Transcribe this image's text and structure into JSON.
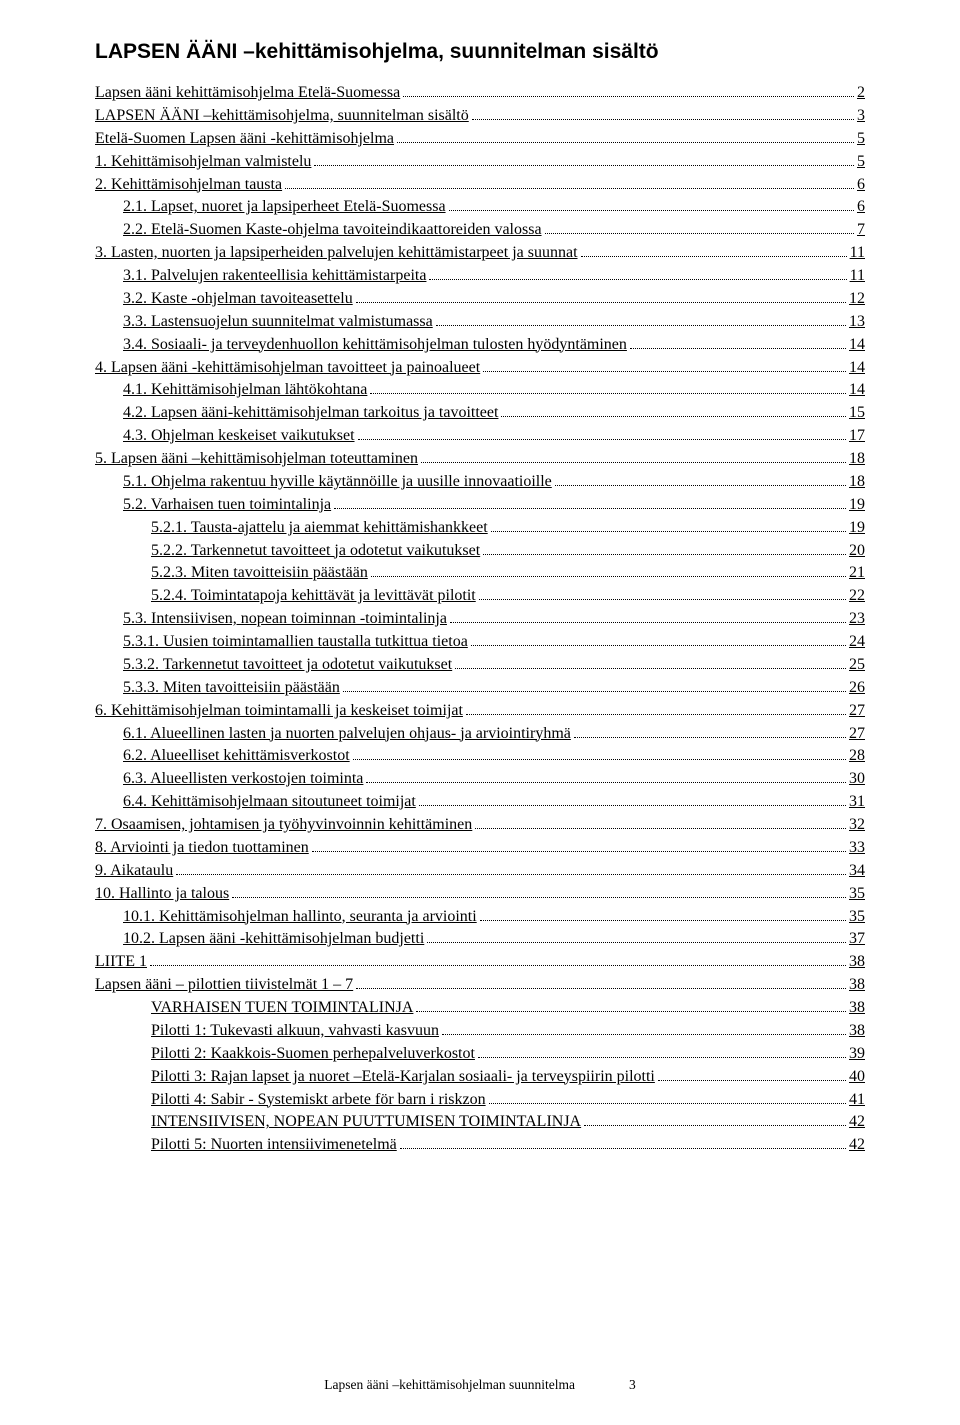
{
  "title": "LAPSEN ÄÄNI –kehittämisohjelma, suunnitelman sisältö",
  "footer": "Lapsen ääni –kehittämisohjelman suunnitelma",
  "footer_page": "3",
  "toc": [
    {
      "indent": 0,
      "label": "Lapsen ääni kehittämisohjelma Etelä-Suomessa",
      "page": "2"
    },
    {
      "indent": 0,
      "label": "LAPSEN ÄÄNI –kehittämisohjelma, suunnitelman sisältö",
      "page": "3"
    },
    {
      "indent": 0,
      "label": "Etelä-Suomen Lapsen ääni -kehittämisohjelma",
      "page": "5"
    },
    {
      "indent": 0,
      "label": "1.  Kehittämisohjelman valmistelu",
      "page": "5"
    },
    {
      "indent": 0,
      "label": "2.  Kehittämisohjelman tausta",
      "page": "6"
    },
    {
      "indent": 1,
      "label": "2.1.  Lapset, nuoret ja lapsiperheet Etelä-Suomessa",
      "page": "6"
    },
    {
      "indent": 1,
      "label": "2.2.  Etelä-Suomen Kaste-ohjelma tavoiteindikaattoreiden valossa",
      "page": "7"
    },
    {
      "indent": 0,
      "label": "3.  Lasten, nuorten ja lapsiperheiden palvelujen kehittämistarpeet ja suunnat",
      "page": "11"
    },
    {
      "indent": 1,
      "label": "3.1.  Palvelujen rakenteellisia kehittämistarpeita",
      "page": "11"
    },
    {
      "indent": 1,
      "label": "3.2.  Kaste -ohjelman tavoiteasettelu",
      "page": "12"
    },
    {
      "indent": 1,
      "label": "3.3.  Lastensuojelun suunnitelmat valmistumassa",
      "page": "13"
    },
    {
      "indent": 1,
      "label": "3.4.  Sosiaali- ja terveydenhuollon kehittämisohjelman tulosten hyödyntäminen",
      "page": "14"
    },
    {
      "indent": 0,
      "label": "4.  Lapsen ääni -kehittämisohjelman tavoitteet ja painoalueet",
      "page": "14"
    },
    {
      "indent": 1,
      "label": "4.1.  Kehittämisohjelman lähtökohtana",
      "page": "14"
    },
    {
      "indent": 1,
      "label": "4.2.  Lapsen ääni-kehittämisohjelman tarkoitus ja tavoitteet",
      "page": "15"
    },
    {
      "indent": 1,
      "label": "4.3.  Ohjelman keskeiset vaikutukset",
      "page": "17"
    },
    {
      "indent": 0,
      "label": "5.  Lapsen ääni –kehittämisohjelman toteuttaminen",
      "page": "18"
    },
    {
      "indent": 1,
      "label": "5.1.  Ohjelma rakentuu hyville käytännöille ja uusille innovaatioille",
      "page": "18"
    },
    {
      "indent": 1,
      "label": "5.2.  Varhaisen tuen toimintalinja",
      "page": "19"
    },
    {
      "indent": 2,
      "label": "5.2.1.  Tausta-ajattelu ja aiemmat kehittämishankkeet",
      "page": "19"
    },
    {
      "indent": 2,
      "label": "5.2.2.  Tarkennetut tavoitteet ja odotetut vaikutukset",
      "page": "20"
    },
    {
      "indent": 2,
      "label": "5.2.3.  Miten tavoitteisiin päästään",
      "page": "21"
    },
    {
      "indent": 2,
      "label": "5.2.4.  Toimintatapoja kehittävät ja levittävät pilotit",
      "page": "22"
    },
    {
      "indent": 1,
      "label": "5.3.  Intensiivisen, nopean toiminnan -toimintalinja",
      "page": "23"
    },
    {
      "indent": 1,
      "label": "5.3.1.  Uusien toimintamallien taustalla tutkittua tietoa",
      "page": "24"
    },
    {
      "indent": 1,
      "label": "5.3.2.  Tarkennetut tavoitteet ja odotetut vaikutukset",
      "page": "25"
    },
    {
      "indent": 1,
      "label": "5.3.3.  Miten tavoitteisiin päästään",
      "page": "26"
    },
    {
      "indent": 0,
      "label": "6.  Kehittämisohjelman toimintamalli ja keskeiset toimijat",
      "page": "27"
    },
    {
      "indent": 1,
      "label": "6.1.  Alueellinen lasten ja nuorten palvelujen ohjaus- ja arviointiryhmä",
      "page": "27"
    },
    {
      "indent": 1,
      "label": "6.2.    Alueelliset kehittämisverkostot",
      "page": "28"
    },
    {
      "indent": 1,
      "label": "6.3.  Alueellisten verkostojen toiminta",
      "page": "30"
    },
    {
      "indent": 1,
      "label": "6.4.  Kehittämisohjelmaan sitoutuneet toimijat",
      "page": "31"
    },
    {
      "indent": 0,
      "label": "7.  Osaamisen, johtamisen ja työhyvinvoinnin kehittäminen",
      "page": "32"
    },
    {
      "indent": 0,
      "label": "8.  Arviointi ja tiedon tuottaminen",
      "page": "33"
    },
    {
      "indent": 0,
      "label": "9.  Aikataulu",
      "page": "34"
    },
    {
      "indent": 0,
      "label": "10.  Hallinto ja talous",
      "page": "35"
    },
    {
      "indent": 1,
      "label": "10.1.  Kehittämisohjelman hallinto, seuranta ja arviointi",
      "page": "35"
    },
    {
      "indent": 1,
      "label": "10.2.  Lapsen ääni -kehittämisohjelman budjetti",
      "page": "37"
    },
    {
      "indent": 0,
      "label": "LIITE 1",
      "page": "38"
    },
    {
      "indent": 0,
      "label": "Lapsen ääni – pilottien tiivistelmät 1 – 7",
      "page": "38"
    },
    {
      "indent": 2,
      "label": "VARHAISEN TUEN TOIMINTALINJA",
      "page": "38"
    },
    {
      "indent": 2,
      "label": "Pilotti 1: Tukevasti alkuun, vahvasti kasvuun",
      "page": "38"
    },
    {
      "indent": 2,
      "label": "Pilotti 2: Kaakkois-Suomen perhepalveluverkostot",
      "page": "39"
    },
    {
      "indent": 2,
      "label": "Pilotti 3: Rajan lapset ja nuoret –Etelä-Karjalan sosiaali- ja terveyspiirin pilotti",
      "page": "40"
    },
    {
      "indent": 2,
      "label": "Pilotti 4: Sabir - Systemiskt arbete för barn i riskzon",
      "page": "41"
    },
    {
      "indent": 2,
      "label": "INTENSIIVISEN, NOPEAN PUUTTUMISEN TOIMINTALINJA",
      "page": "42"
    },
    {
      "indent": 2,
      "label": "Pilotti 5: Nuorten intensiivimenetelmä",
      "page": "42"
    }
  ]
}
